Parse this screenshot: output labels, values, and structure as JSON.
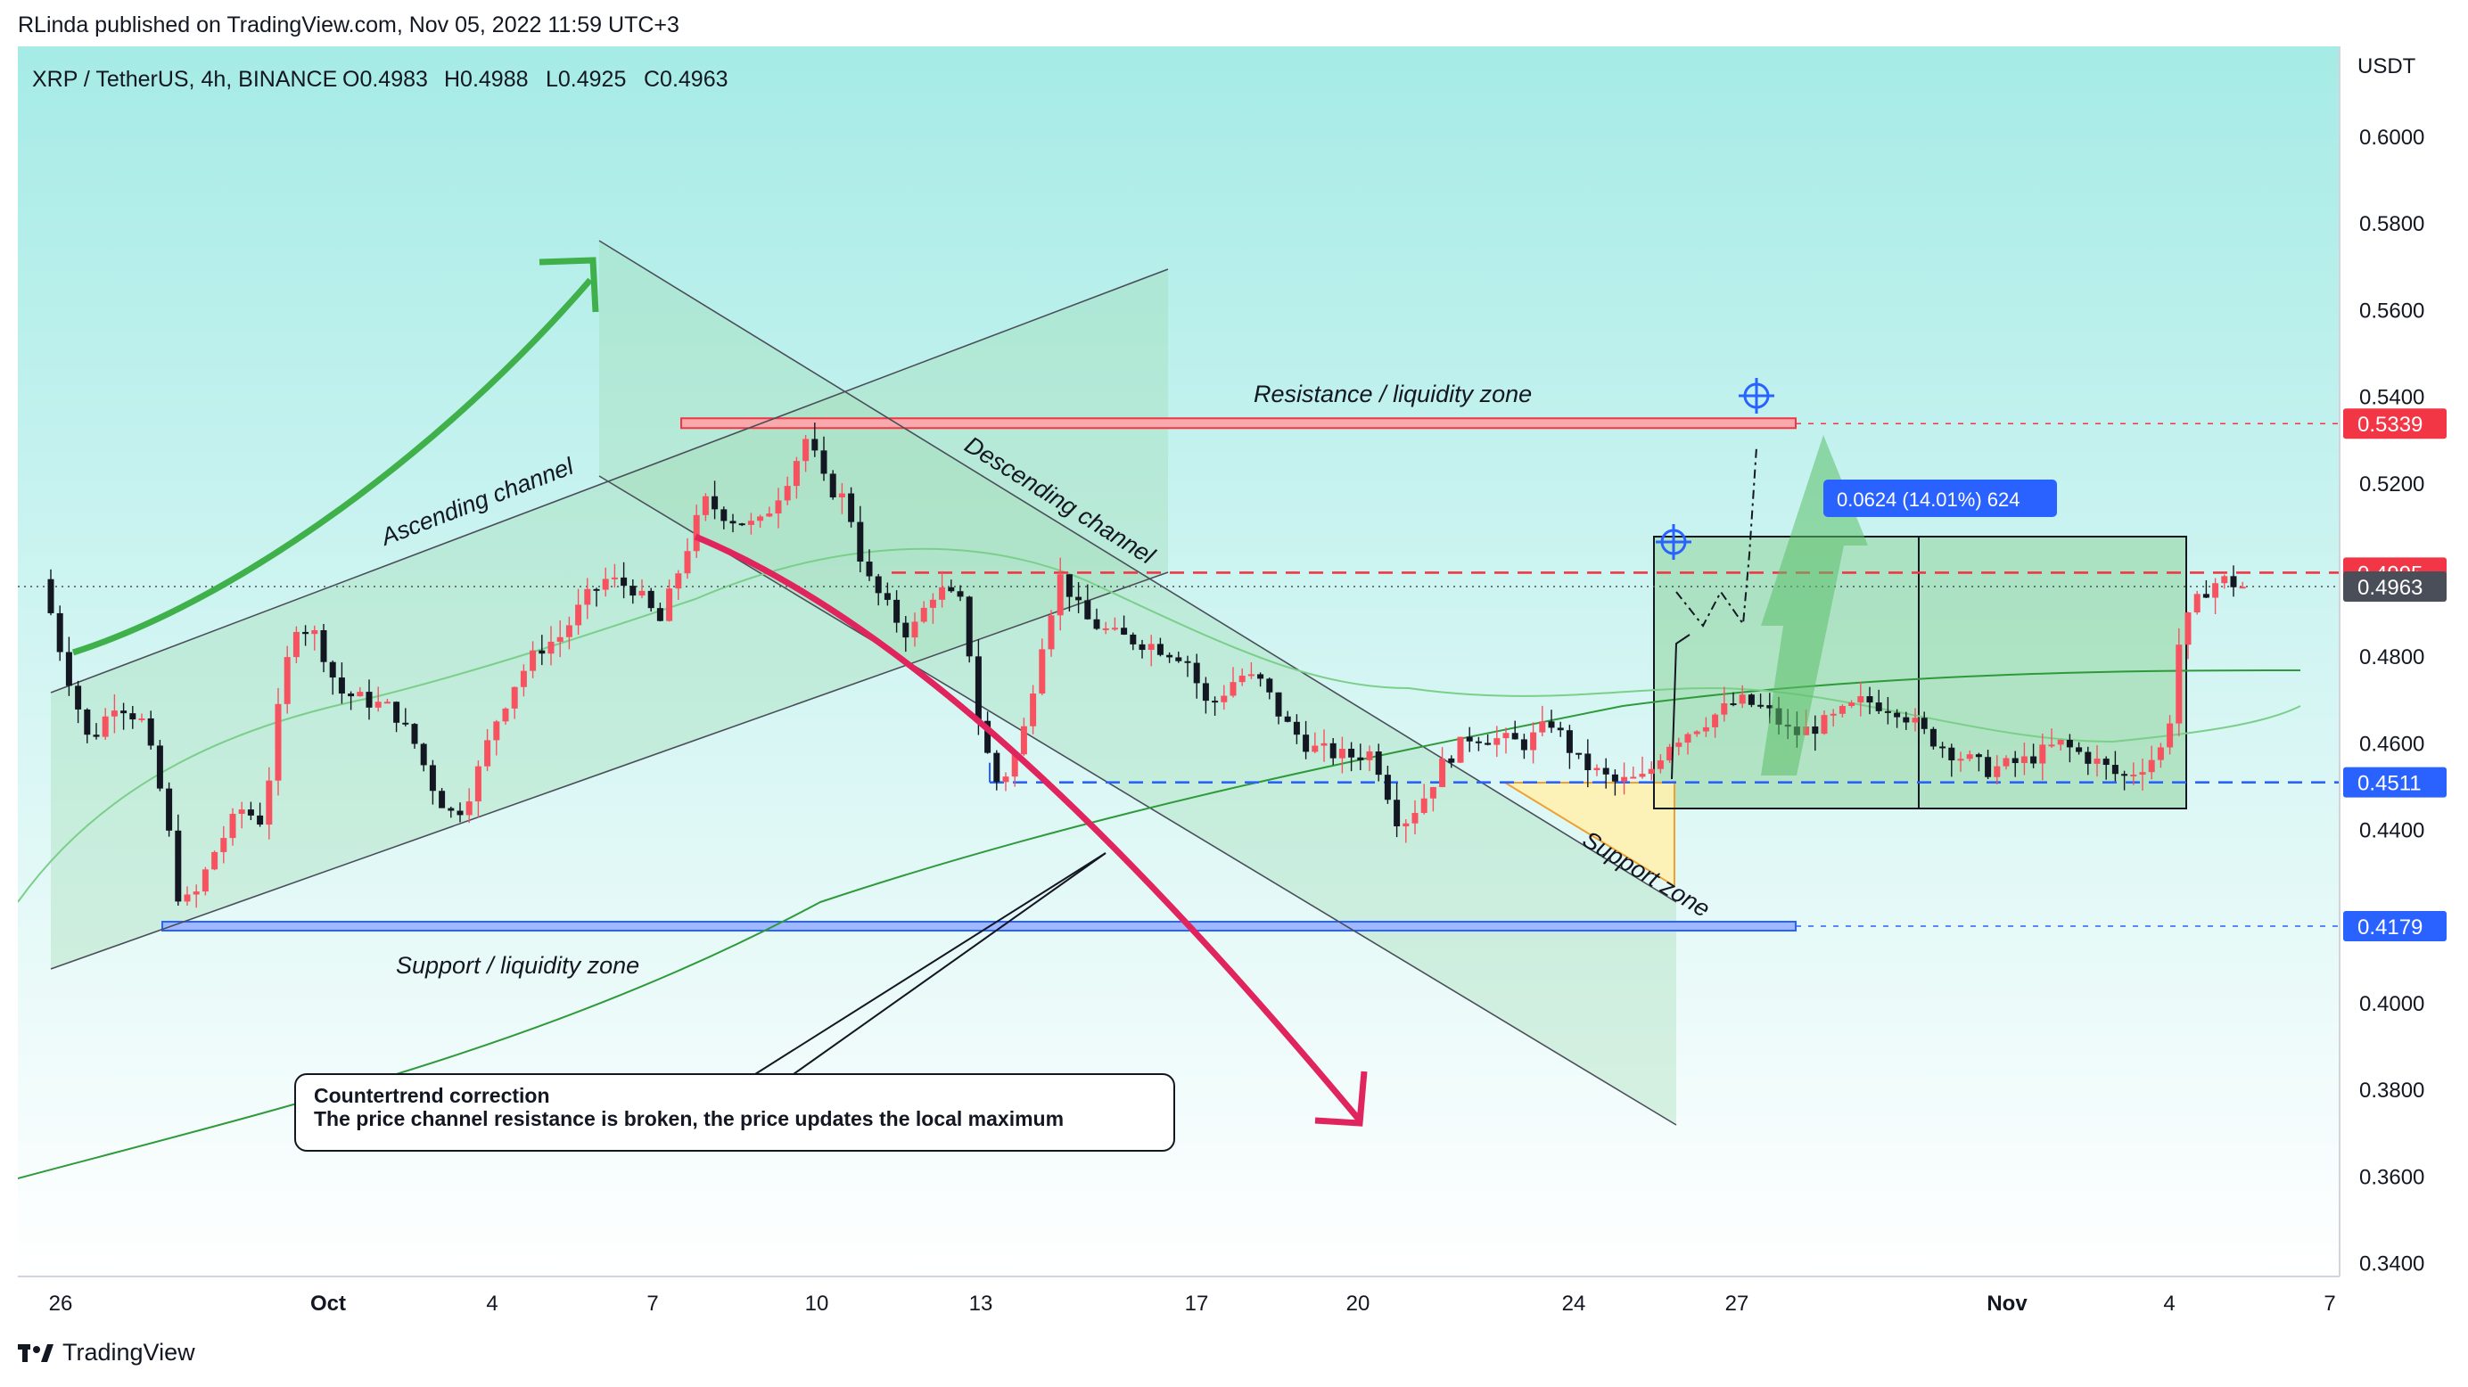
{
  "header": {
    "publisher": "RLinda published on TradingView.com, Nov 05, 2022 11:59 UTC+3"
  },
  "legend": {
    "symbol": "XRP / TetherUS, 4h, BINANCE",
    "open": "O0.4983",
    "high": "H0.4988",
    "low": "L0.4925",
    "close": "C0.4963"
  },
  "footer": {
    "brand": "TradingView"
  },
  "chart_data": {
    "type": "candlestick",
    "currency_label": "USDT",
    "y_ticks": [
      "0.6000",
      "0.5800",
      "0.5600",
      "0.5400",
      "0.5200",
      "0.4800",
      "0.4600",
      "0.4400",
      "0.4000",
      "0.3800",
      "0.3600",
      "0.3400"
    ],
    "x_ticks": [
      "26",
      "Oct",
      "4",
      "7",
      "10",
      "13",
      "17",
      "20",
      "24",
      "27",
      "Nov",
      "4",
      "7"
    ],
    "price_tags": [
      {
        "value": "0.5339",
        "color": "#f23645"
      },
      {
        "value": "0.4995",
        "color": "#f23645"
      },
      {
        "value": "0.4963",
        "color": "#4a4e59"
      },
      {
        "value": "0.4511",
        "color": "#2962ff"
      },
      {
        "value": "0.4179",
        "color": "#2962ff"
      }
    ],
    "levels": {
      "resistance": 0.5339,
      "mid": 0.4995,
      "last": 0.4963,
      "support_small": 0.4511,
      "support": 0.4179
    },
    "annotations": {
      "resistance_zone": "Resistance / liquidity zone",
      "support_zone_main": "Support / liquidity zone",
      "ascending_channel": "Ascending channel",
      "descending_channel": "Descending channel",
      "support_zone_small": "Support zone",
      "measure": "0.0624 (14.01%) 624",
      "callout_title": "Countertrend correction",
      "callout_text": "The price channel resistance is broken, the price updates the local maximum"
    },
    "colors": {
      "up": "#f7525f",
      "down": "#131722",
      "accent": "#2962ff",
      "resistance": "#f23645"
    }
  }
}
